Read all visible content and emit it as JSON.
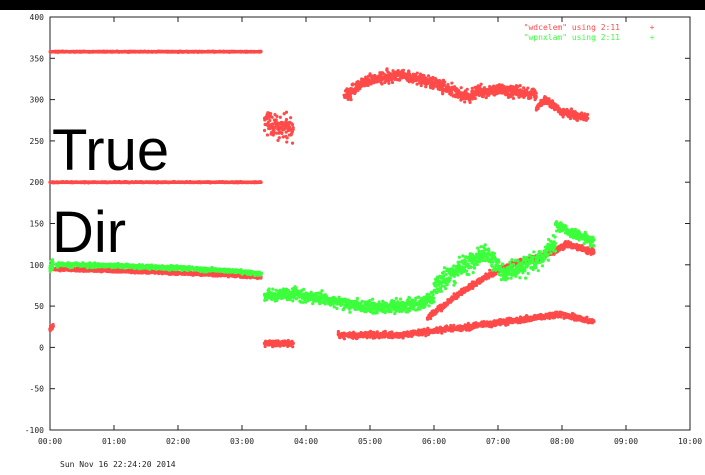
{
  "overlay_text": [
    "True",
    "Dir"
  ],
  "timestamp": "Sun Nov 16 22:24:20 2014",
  "colors": {
    "series1": "#ff4a4a",
    "series2": "#3dff3d",
    "axis": "#222222",
    "background": "#ffffff"
  },
  "chart_data": {
    "type": "scatter",
    "title": "",
    "xlabel": "",
    "ylabel": "",
    "ylim": [
      -100,
      400
    ],
    "xlim": [
      0,
      10
    ],
    "yticks": [
      -100,
      -50,
      0,
      50,
      100,
      150,
      200,
      250,
      300,
      350,
      400
    ],
    "xtick_labels": [
      "00:00",
      "01:00",
      "02:00",
      "03:00",
      "04:00",
      "05:00",
      "06:00",
      "07:00",
      "08:00",
      "09:00",
      "10:00"
    ],
    "grid": false,
    "legend_position": "top-right",
    "series": [
      {
        "name": "\"wdcelem\" using 2:11",
        "color": "#ff4a4a",
        "segments": [
          {
            "x": [
              0.05,
              1.0,
              2.0,
              3.0,
              3.3
            ],
            "y": [
              95,
              93,
              90,
              87,
              85
            ],
            "spread": 3
          },
          {
            "x": [
              0.0,
              3.3
            ],
            "y": [
              358,
              358
            ],
            "spread": 1
          },
          {
            "x": [
              0.0,
              3.3
            ],
            "y": [
              200,
              200
            ],
            "spread": 1
          },
          {
            "x": [
              0.0,
              0.05
            ],
            "y": [
              25,
              25
            ],
            "spread": 8
          },
          {
            "x": [
              3.35,
              3.8
            ],
            "y": [
              270,
              265
            ],
            "spread": 25
          },
          {
            "x": [
              3.35,
              3.8
            ],
            "y": [
              5,
              5
            ],
            "spread": 6
          },
          {
            "x": [
              4.6,
              5.0,
              5.5,
              6.0,
              6.5,
              7.0,
              7.6
            ],
            "y": [
              305,
              325,
              330,
              320,
              305,
              312,
              306
            ],
            "spread": 12
          },
          {
            "x": [
              7.6,
              7.75,
              8.0,
              8.4
            ],
            "y": [
              290,
              300,
              285,
              278
            ],
            "spread": 8
          },
          {
            "x": [
              4.5,
              5.0,
              5.5,
              6.0,
              6.5,
              7.0,
              7.5,
              8.0,
              8.5
            ],
            "y": [
              15,
              15,
              15,
              20,
              25,
              30,
              35,
              40,
              30
            ],
            "spread": 6
          },
          {
            "x": [
              5.9,
              6.3,
              6.8,
              7.2,
              7.7,
              8.1,
              8.5
            ],
            "y": [
              35,
              60,
              85,
              100,
              110,
              125,
              115
            ],
            "spread": 6
          }
        ]
      },
      {
        "name": "\"wpnxlam\" using 2:11",
        "color": "#3dff3d",
        "segments": [
          {
            "x": [
              0.0,
              0.05
            ],
            "y": [
              98,
              98
            ],
            "spread": 12
          },
          {
            "x": [
              0.1,
              1.0,
              2.0,
              3.0,
              3.3
            ],
            "y": [
              100,
              99,
              96,
              92,
              89
            ],
            "spread": 4
          },
          {
            "x": [
              3.35,
              3.8,
              4.3,
              4.8,
              5.2,
              5.7,
              6.0
            ],
            "y": [
              62,
              65,
              58,
              50,
              48,
              52,
              60
            ],
            "spread": 12
          },
          {
            "x": [
              6.0,
              6.4,
              6.8,
              7.1,
              7.6,
              7.9
            ],
            "y": [
              75,
              95,
              115,
              90,
              105,
              125
            ],
            "spread": 20
          },
          {
            "x": [
              7.9,
              8.1,
              8.5
            ],
            "y": [
              150,
              140,
              128
            ],
            "spread": 10
          }
        ]
      }
    ]
  }
}
